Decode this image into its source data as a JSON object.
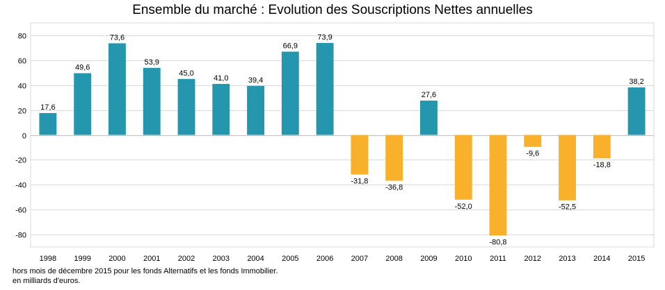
{
  "chart_data": {
    "type": "bar",
    "title": "Ensemble du marché : Evolution des Souscriptions Nettes annuelles",
    "categories": [
      "1998",
      "1999",
      "2000",
      "2001",
      "2002",
      "2003",
      "2004",
      "2005",
      "2006",
      "2007",
      "2008",
      "2009",
      "2010",
      "2011",
      "2012",
      "2013",
      "2014",
      "2015"
    ],
    "values": [
      17.6,
      49.6,
      73.6,
      53.9,
      45.0,
      41.0,
      39.4,
      66.9,
      73.9,
      -31.8,
      -36.8,
      27.6,
      -52.0,
      -80.8,
      -9.6,
      -52.5,
      -18.8,
      38.2
    ],
    "data_labels": [
      "17,6",
      "49,6",
      "73,6",
      "53,9",
      "45,0",
      "41,0",
      "39,4",
      "66,9",
      "73,9",
      "-31,8",
      "-36,8",
      "27,6",
      "-52,0",
      "-80,8",
      "-9,6",
      "-52,5",
      "-18,8",
      "38,2"
    ],
    "ylim": [
      -90,
      90
    ],
    "yticks": [
      -80,
      -60,
      -40,
      -20,
      0,
      20,
      40,
      60,
      80
    ],
    "xlabel": "",
    "ylabel": "",
    "grid": true,
    "legend": "none",
    "colors": {
      "positive": "#2496AE",
      "negative": "#F9B02A",
      "grid": "#D9D9D9"
    }
  },
  "footnotes": [
    "hors mois de décembre 2015 pour les fonds Alternatifs et les fonds Immobilier.",
    "en milliards d'euros."
  ]
}
